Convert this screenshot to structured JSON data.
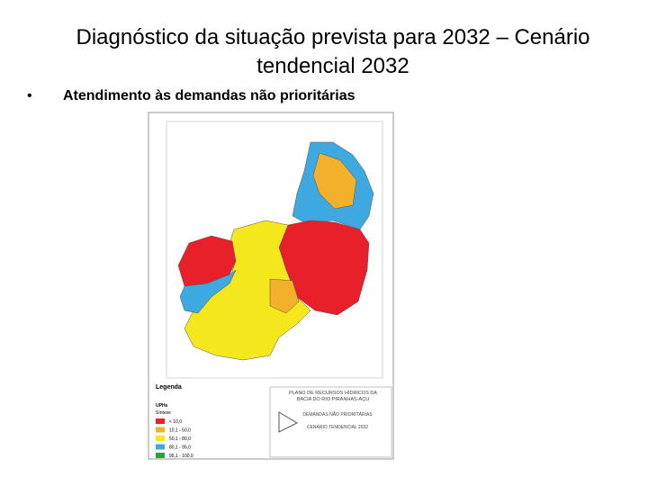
{
  "header": {
    "title_line1": "Diagnóstico da situação prevista para 2032 – Cenário",
    "title_line2": "tendencial 2032"
  },
  "bullet": "Atendimento às demandas não prioritárias",
  "map": {
    "legend": {
      "title": "Legenda",
      "group": "UPHs",
      "subtitle": "Síntese",
      "items": [
        "< 10,0",
        "10,1 - 50,0",
        "50,1 - 80,0",
        "80,1 - 95,0",
        "95,1 - 100,0"
      ]
    },
    "title_block": {
      "line1": "PLANO DE RECURSOS HÍDRICOS DA",
      "line2": "BACIA DO RIO PIRANHAS-AÇU",
      "line3": "DEMANDAS NÃO PRIORITÁRIAS",
      "line4": "CENÁRIO TENDENCIAL 2032"
    }
  }
}
